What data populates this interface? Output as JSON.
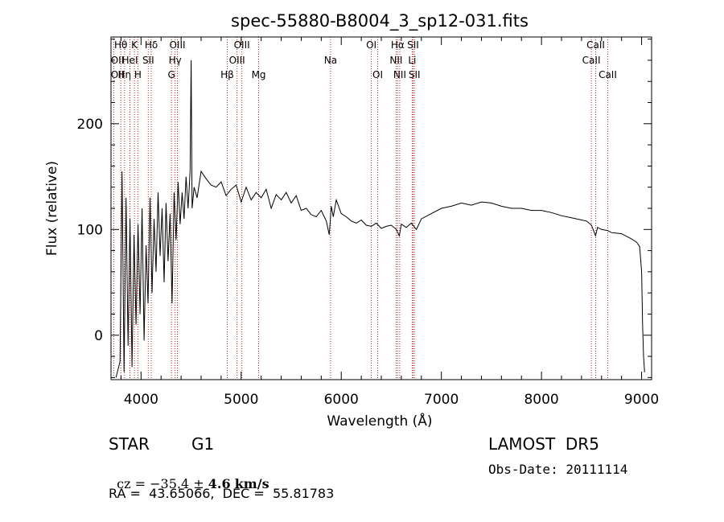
{
  "chart_data": {
    "type": "line",
    "title": "spec-55880-B8004_3_sp12-031.fits",
    "xlabel": "Wavelength (Å)",
    "ylabel": "Flux (relative)",
    "xlim": [
      3700,
      9100
    ],
    "ylim": [
      -42,
      282
    ],
    "x_ticks": [
      4000,
      5000,
      6000,
      7000,
      8000,
      9000
    ],
    "y_ticks": [
      0,
      100,
      200
    ],
    "line_color": "#000000",
    "marker_color": "#b22222",
    "grid": false,
    "legend": "none",
    "lines": [
      {
        "wave": 3798,
        "label": "Hθ",
        "row": 0
      },
      {
        "wave": 3835,
        "label": "Hη",
        "row": 2
      },
      {
        "wave": 3889,
        "label": "HeI",
        "row": 1
      },
      {
        "wave": 3934,
        "label": "K",
        "row": 0
      },
      {
        "wave": 3968,
        "label": "H",
        "row": 2
      },
      {
        "wave": 3727,
        "label": "OII",
        "row": 1
      },
      {
        "wave": 3727,
        "label": "OII",
        "row": 2
      },
      {
        "wave": 4072,
        "label": "SII",
        "row": 1
      },
      {
        "wave": 4102,
        "label": "Hδ",
        "row": 0
      },
      {
        "wave": 4304,
        "label": "G",
        "row": 2
      },
      {
        "wave": 4340,
        "label": "Hγ",
        "row": 1
      },
      {
        "wave": 4363,
        "label": "OIII",
        "row": 0
      },
      {
        "wave": 4861,
        "label": "Hβ",
        "row": 2
      },
      {
        "wave": 4959,
        "label": "OIII",
        "row": 1
      },
      {
        "wave": 5007,
        "label": "OIII",
        "row": 0
      },
      {
        "wave": 5175,
        "label": "Mg",
        "row": 2
      },
      {
        "wave": 5893,
        "label": "Na",
        "row": 1
      },
      {
        "wave": 6300,
        "label": "OI",
        "row": 0
      },
      {
        "wave": 6364,
        "label": "OI",
        "row": 2
      },
      {
        "wave": 6548,
        "label": "NII",
        "row": 1
      },
      {
        "wave": 6563,
        "label": "Hα",
        "row": 0
      },
      {
        "wave": 6584,
        "label": "NII",
        "row": 2
      },
      {
        "wave": 6708,
        "label": "Li",
        "row": 1
      },
      {
        "wave": 6717,
        "label": "SII",
        "row": 0
      },
      {
        "wave": 6731,
        "label": "SII",
        "row": 2
      },
      {
        "wave": 8498,
        "label": "CaII",
        "row": 1
      },
      {
        "wave": 8542,
        "label": "CaII",
        "row": 0
      },
      {
        "wave": 8662,
        "label": "CaII",
        "row": 2
      }
    ],
    "series": [
      {
        "x": [
          3750,
          3790,
          3810,
          3830,
          3850,
          3870,
          3890,
          3910,
          3930,
          3950,
          3970,
          3990,
          4010,
          4030,
          4050,
          4070,
          4090,
          4110,
          4130,
          4150,
          4170,
          4190,
          4210,
          4230,
          4250,
          4270,
          4290,
          4310,
          4330,
          4350,
          4370,
          4390,
          4410,
          4430,
          4450,
          4470,
          4490,
          4500,
          4510,
          4530,
          4560,
          4600,
          4650,
          4700,
          4750,
          4800,
          4850,
          4900,
          4950,
          5000,
          5050,
          5100,
          5150,
          5200,
          5250,
          5300,
          5350,
          5400,
          5450,
          5500,
          5550,
          5600,
          5650,
          5700,
          5750,
          5800,
          5850,
          5880,
          5900,
          5920,
          5950,
          6000,
          6050,
          6100,
          6150,
          6200,
          6250,
          6300,
          6350,
          6400,
          6450,
          6500,
          6550,
          6580,
          6600,
          6650,
          6700,
          6750,
          6800,
          6900,
          7000,
          7100,
          7200,
          7300,
          7400,
          7500,
          7600,
          7700,
          7800,
          7900,
          8000,
          8100,
          8200,
          8300,
          8400,
          8450,
          8500,
          8540,
          8560,
          8600,
          8660,
          8700,
          8800,
          8900,
          8950,
          8980,
          9000,
          9010,
          9020,
          9030
        ],
        "y": [
          -40,
          -25,
          155,
          -35,
          130,
          -10,
          110,
          -30,
          95,
          10,
          105,
          20,
          120,
          -5,
          85,
          30,
          130,
          40,
          110,
          60,
          135,
          75,
          120,
          50,
          125,
          70,
          115,
          30,
          135,
          90,
          145,
          105,
          135,
          110,
          150,
          120,
          155,
          260,
          120,
          140,
          130,
          155,
          148,
          142,
          140,
          145,
          132,
          138,
          142,
          126,
          140,
          128,
          135,
          130,
          138,
          120,
          133,
          128,
          135,
          125,
          132,
          118,
          120,
          114,
          112,
          118,
          108,
          95,
          122,
          112,
          128,
          115,
          112,
          108,
          106,
          109,
          104,
          103,
          106,
          101,
          103,
          104,
          100,
          94,
          105,
          102,
          106,
          100,
          110,
          115,
          120,
          122,
          125,
          123,
          126,
          125,
          122,
          120,
          120,
          118,
          118,
          116,
          113,
          111,
          109,
          108,
          104,
          94,
          102,
          100,
          99,
          97,
          96,
          91,
          88,
          84,
          60,
          10,
          -20,
          -35
        ]
      }
    ]
  },
  "info": {
    "object_class": "STAR",
    "subclass": "G1",
    "survey": "LAMOST  DR5",
    "cz_label": "cz = ",
    "cz_value": "−35.4",
    "cz_pm": "±",
    "cz_error": "4.6",
    "cz_unit": "km/s",
    "obs_date": "Obs-Date: 20111114",
    "coords": "RA =  43.65066,  DEC =  55.81783"
  }
}
